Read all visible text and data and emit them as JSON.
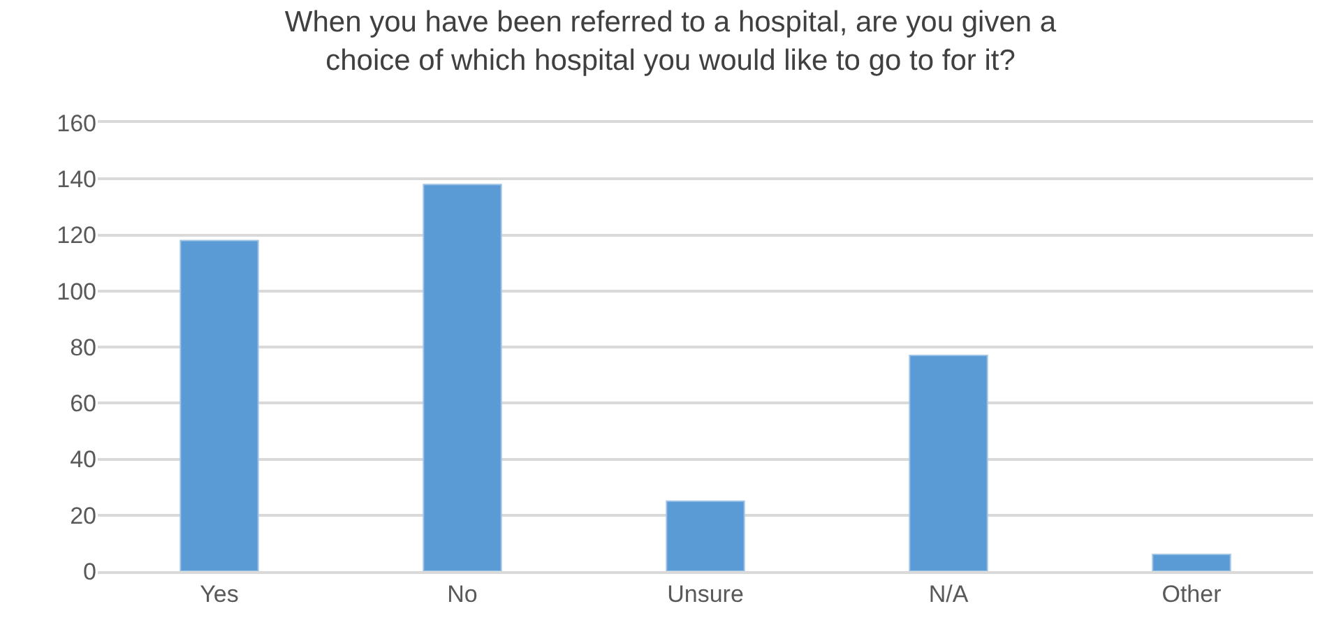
{
  "chart_data": {
    "type": "bar",
    "title": "When you have been referred to a hospital, are you given a choice of which hospital you would like to go to for it?",
    "categories": [
      "Yes",
      "No",
      "Unsure",
      "N/A",
      "Other"
    ],
    "values": [
      118,
      138,
      25,
      77,
      6
    ],
    "color": "#5b9bd5",
    "ylim": [
      0,
      160
    ],
    "yticks": [
      0,
      20,
      40,
      60,
      80,
      100,
      120,
      140,
      160
    ],
    "grid": "y"
  }
}
